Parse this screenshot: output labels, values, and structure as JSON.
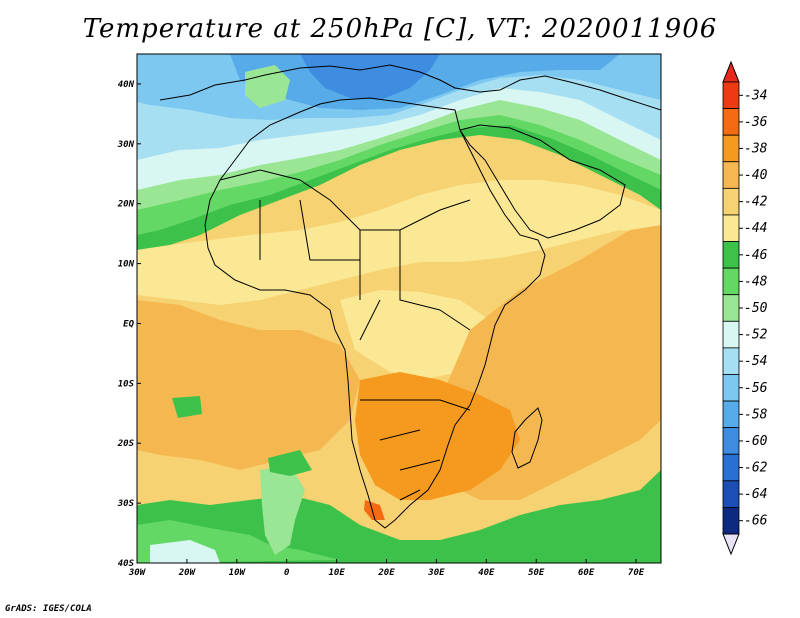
{
  "title": "Temperature at 250hPa [C], VT: 2020011906",
  "footer": "GrADS: IGES/COLA",
  "map": {
    "lon_range": [
      -30,
      75
    ],
    "lat_range": [
      -40,
      45
    ],
    "lat_ticks": [
      {
        "value": 40,
        "label": "40N"
      },
      {
        "value": 30,
        "label": "30N"
      },
      {
        "value": 20,
        "label": "20N"
      },
      {
        "value": 10,
        "label": "10N"
      },
      {
        "value": 0,
        "label": "EQ"
      },
      {
        "value": -10,
        "label": "10S"
      },
      {
        "value": -20,
        "label": "20S"
      },
      {
        "value": -30,
        "label": "30S"
      },
      {
        "value": -40,
        "label": "40S"
      }
    ],
    "lon_ticks": [
      {
        "value": -30,
        "label": "30W"
      },
      {
        "value": -20,
        "label": "20W"
      },
      {
        "value": -10,
        "label": "10W"
      },
      {
        "value": 0,
        "label": "0"
      },
      {
        "value": 10,
        "label": "10E"
      },
      {
        "value": 20,
        "label": "20E"
      },
      {
        "value": 30,
        "label": "30E"
      },
      {
        "value": 40,
        "label": "40E"
      },
      {
        "value": 50,
        "label": "50E"
      },
      {
        "value": 60,
        "label": "60E"
      },
      {
        "value": 70,
        "label": "70E"
      }
    ]
  },
  "colorbar": {
    "levels": [
      "-34",
      "-36",
      "-38",
      "-40",
      "-42",
      "-44",
      "-46",
      "-48",
      "-50",
      "-52",
      "-54",
      "-56",
      "-58",
      "-60",
      "-62",
      "-64",
      "-66"
    ],
    "colors": [
      "#ed3a12",
      "#f56b12",
      "#f59a1e",
      "#f5b850",
      "#f7d272",
      "#fae895",
      "#3cc24a",
      "#64d864",
      "#9ae695",
      "#d9f7f2",
      "#a7dff2",
      "#7cc8f0",
      "#57abe8",
      "#3e8de0",
      "#2a6fd3",
      "#1b4fb5",
      "#0e2a80"
    ],
    "top_color": "#e8291b",
    "bottom_color": "#e8e3f7"
  },
  "field": {
    "background": "#f7d272",
    "colors": {
      "lighter_yellow": "#fae895",
      "orange": "#f5b850",
      "dark_orange": "#f59a1e",
      "red_orange": "#f56b12",
      "green": "#3cc24a",
      "mid_green": "#64d864",
      "light_green": "#9ae695",
      "pale_cyan": "#d9f7f2",
      "light_blue": "#a7dff2",
      "mid_blue": "#7cc8f0",
      "blue": "#57abe8",
      "deep_blue": "#3e8de0"
    },
    "coast_color": "#000000"
  }
}
